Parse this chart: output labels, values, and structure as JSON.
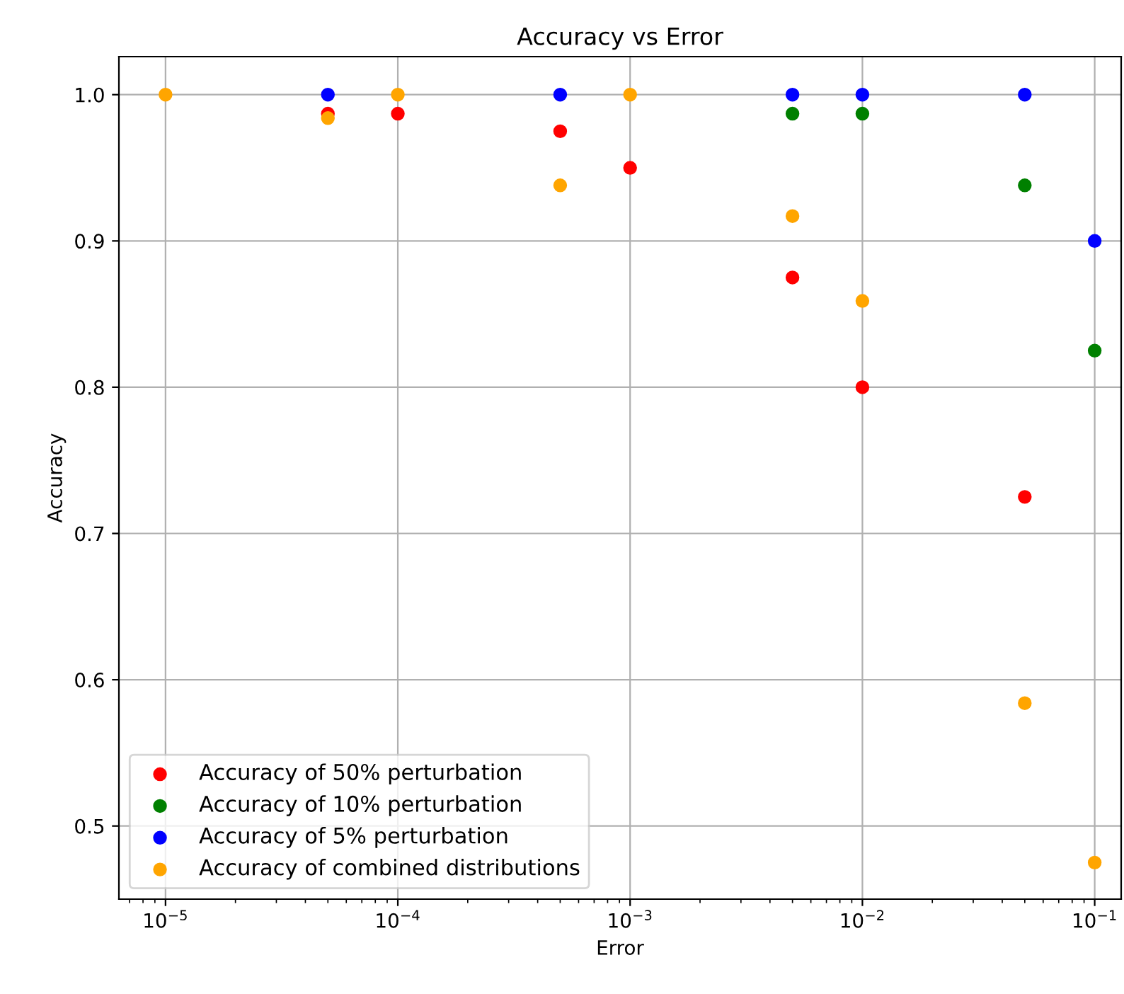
{
  "chart_data": {
    "type": "scatter",
    "title": "Accuracy vs Error",
    "xlabel": "Error",
    "ylabel": "Accuracy",
    "x": [
      1e-05,
      5e-05,
      0.0001,
      0.0005,
      0.001,
      0.005,
      0.01,
      0.05,
      0.1
    ],
    "series": [
      {
        "name": "Accuracy of 50% perturbation",
        "color": "#ff0000",
        "values": [
          null,
          0.987,
          0.987,
          0.975,
          0.95,
          0.875,
          0.8,
          0.725,
          null
        ]
      },
      {
        "name": "Accuracy of 10% perturbation",
        "color": "#008000",
        "values": [
          null,
          null,
          null,
          null,
          null,
          0.987,
          0.987,
          0.938,
          0.825
        ]
      },
      {
        "name": "Accuracy of 5% perturbation",
        "color": "#0000ff",
        "values": [
          null,
          1.0,
          null,
          1.0,
          null,
          1.0,
          1.0,
          1.0,
          0.9
        ]
      },
      {
        "name": "Accuracy of combined distributions",
        "color": "#ffa500",
        "values": [
          1.0,
          0.984,
          1.0,
          0.938,
          1.0,
          0.917,
          0.859,
          0.584,
          0.475
        ]
      }
    ],
    "log": "x",
    "xlim": [
      6.3e-06,
      0.13
    ],
    "ylim": [
      0.45,
      1.026
    ],
    "xticks": [
      {
        "value": 1e-05,
        "label": "10$^{−5}$"
      },
      {
        "value": 0.0001,
        "label": "10$^{−4}$"
      },
      {
        "value": 0.001,
        "label": "10$^{−3}$"
      },
      {
        "value": 0.01,
        "label": "10$^{−2}$"
      },
      {
        "value": 0.1,
        "label": "10$^{−1}$"
      }
    ],
    "yticks": [
      {
        "value": 0.5,
        "label": "0.5"
      },
      {
        "value": 0.6,
        "label": "0.6"
      },
      {
        "value": 0.7,
        "label": "0.7"
      },
      {
        "value": 0.8,
        "label": "0.8"
      },
      {
        "value": 0.9,
        "label": "0.9"
      },
      {
        "value": 1.0,
        "label": "1.0"
      }
    ],
    "grid": true,
    "legend": "bottom left",
    "marker": "circle"
  }
}
